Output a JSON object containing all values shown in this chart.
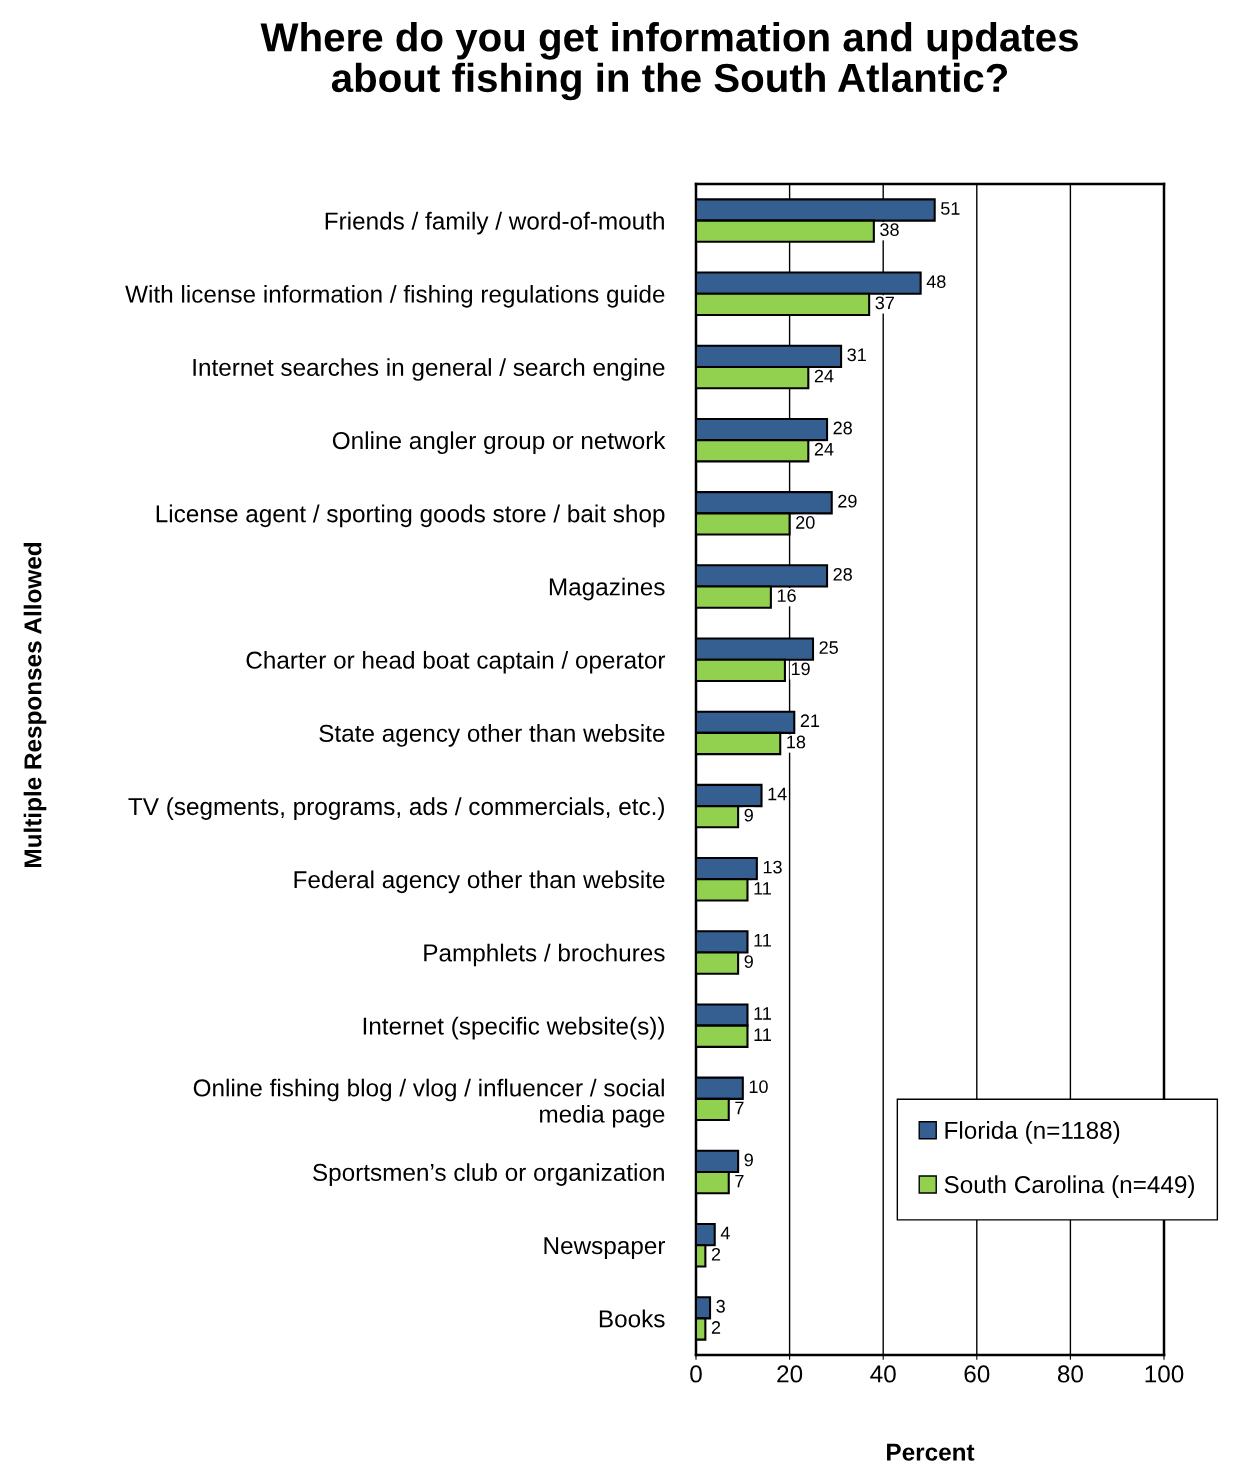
{
  "chart_data": {
    "type": "bar",
    "orientation": "horizontal",
    "title": "Where do you get information and updates\nabout fishing in the South Atlantic?",
    "xlabel": "Percent",
    "ylabel": "Multiple Responses Allowed",
    "categories": [
      "Friends / family / word-of-mouth",
      "With license information / fishing regulations guide",
      "Internet searches in general / search engine",
      "Online angler group or network",
      "License agent / sporting goods store / bait shop",
      "Magazines",
      "Charter or head boat captain / operator",
      "State agency other than website",
      "TV (segments, programs, ads / commercials, etc.)",
      "Federal agency other than website",
      "Pamphlets / brochures",
      "Internet (specific website(s))",
      "Online fishing blog / vlog / influencer / social\nmedia page",
      "Sportsmen’s club or organization",
      "Newspaper",
      "Books"
    ],
    "series": [
      {
        "name": "Florida (n=1188)",
        "color": "#365f91",
        "values": [
          51,
          48,
          31,
          28,
          29,
          28,
          25,
          21,
          14,
          13,
          11,
          11,
          10,
          9,
          4,
          3
        ]
      },
      {
        "name": "South Carolina (n=449)",
        "color": "#92d050",
        "values": [
          38,
          37,
          24,
          24,
          20,
          16,
          19,
          18,
          9,
          11,
          9,
          11,
          7,
          7,
          2,
          2
        ]
      }
    ],
    "xlim": [
      0,
      100
    ],
    "xticks": [
      0,
      20,
      40,
      60,
      80,
      100
    ],
    "grid": "x",
    "legend": "bottom right",
    "data_labels": true
  }
}
